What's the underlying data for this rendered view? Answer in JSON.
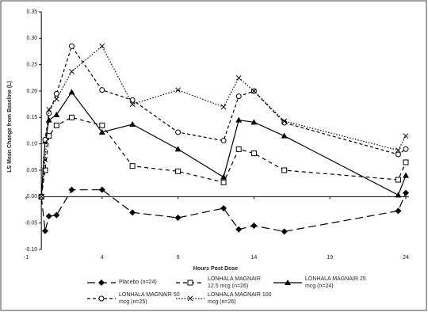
{
  "chart_data": {
    "type": "line",
    "y_label": "LS Mean Change from Baseline (L)",
    "x_label": "Hours Post Dose",
    "x": [
      0,
      0.25,
      0.5,
      1,
      2,
      4,
      6,
      9,
      12,
      13,
      14,
      16,
      23.5,
      24
    ],
    "xlim": [
      -1,
      24
    ],
    "xticks": [
      -1,
      4,
      9,
      14,
      19,
      24
    ],
    "ylim": [
      -0.1,
      0.35
    ],
    "yticks": [
      {
        "value": -0.1,
        "label": "-0.10"
      },
      -0.05,
      {
        "value": 0,
        "label": "0.00"
      },
      0.05,
      {
        "value": 0.1,
        "label": "0.10"
      },
      0.15,
      {
        "value": 0.2,
        "label": "0.20"
      },
      0.25,
      {
        "value": 0.3,
        "label": "0.30"
      },
      0.35
    ],
    "series": [
      {
        "name": "Placebo (n=24)",
        "color": "#000000",
        "marker": "diamond",
        "dash": "10,5",
        "values": [
          0,
          -0.065,
          -0.037,
          -0.035,
          0.013,
          0.013,
          -0.03,
          -0.04,
          -0.022,
          -0.062,
          -0.055,
          -0.066,
          -0.027,
          0.007
        ]
      },
      {
        "name": "LONHALA MAGNAIR 12.5 mcg (n=26)",
        "color": "#000000",
        "marker": "square",
        "dash": "5,4",
        "values": [
          0,
          0.05,
          0.115,
          0.135,
          0.15,
          0.135,
          0.058,
          0.048,
          0.027,
          0.09,
          0.082,
          0.05,
          0.032,
          0.065
        ]
      },
      {
        "name": "LONHALA MAGNAIR 25 mcg (n=24)",
        "color": "#000000",
        "marker": "triangle",
        "dash": "",
        "values": [
          0,
          0.105,
          0.145,
          0.155,
          0.198,
          0.122,
          0.137,
          0.09,
          0.037,
          0.145,
          0.141,
          0.115,
          0.003,
          0.04
        ]
      },
      {
        "name": "LONHALA MAGNAIR 50 mcg (n=25)",
        "color": "#000000",
        "marker": "circle",
        "dash": "4,3",
        "values": [
          0,
          0.108,
          0.158,
          0.195,
          0.285,
          0.202,
          0.183,
          0.122,
          0.106,
          0.19,
          0.2,
          0.14,
          0.08,
          0.09
        ]
      },
      {
        "name": "LONHALA MAGNAIR 100 mcg (n=26)",
        "color": "#000000",
        "marker": "x",
        "dash": "1.5,2",
        "values": [
          0,
          0.07,
          0.165,
          0.185,
          0.237,
          0.285,
          0.175,
          0.202,
          0.17,
          0.225,
          0.2,
          0.143,
          0.088,
          0.115
        ]
      }
    ]
  }
}
